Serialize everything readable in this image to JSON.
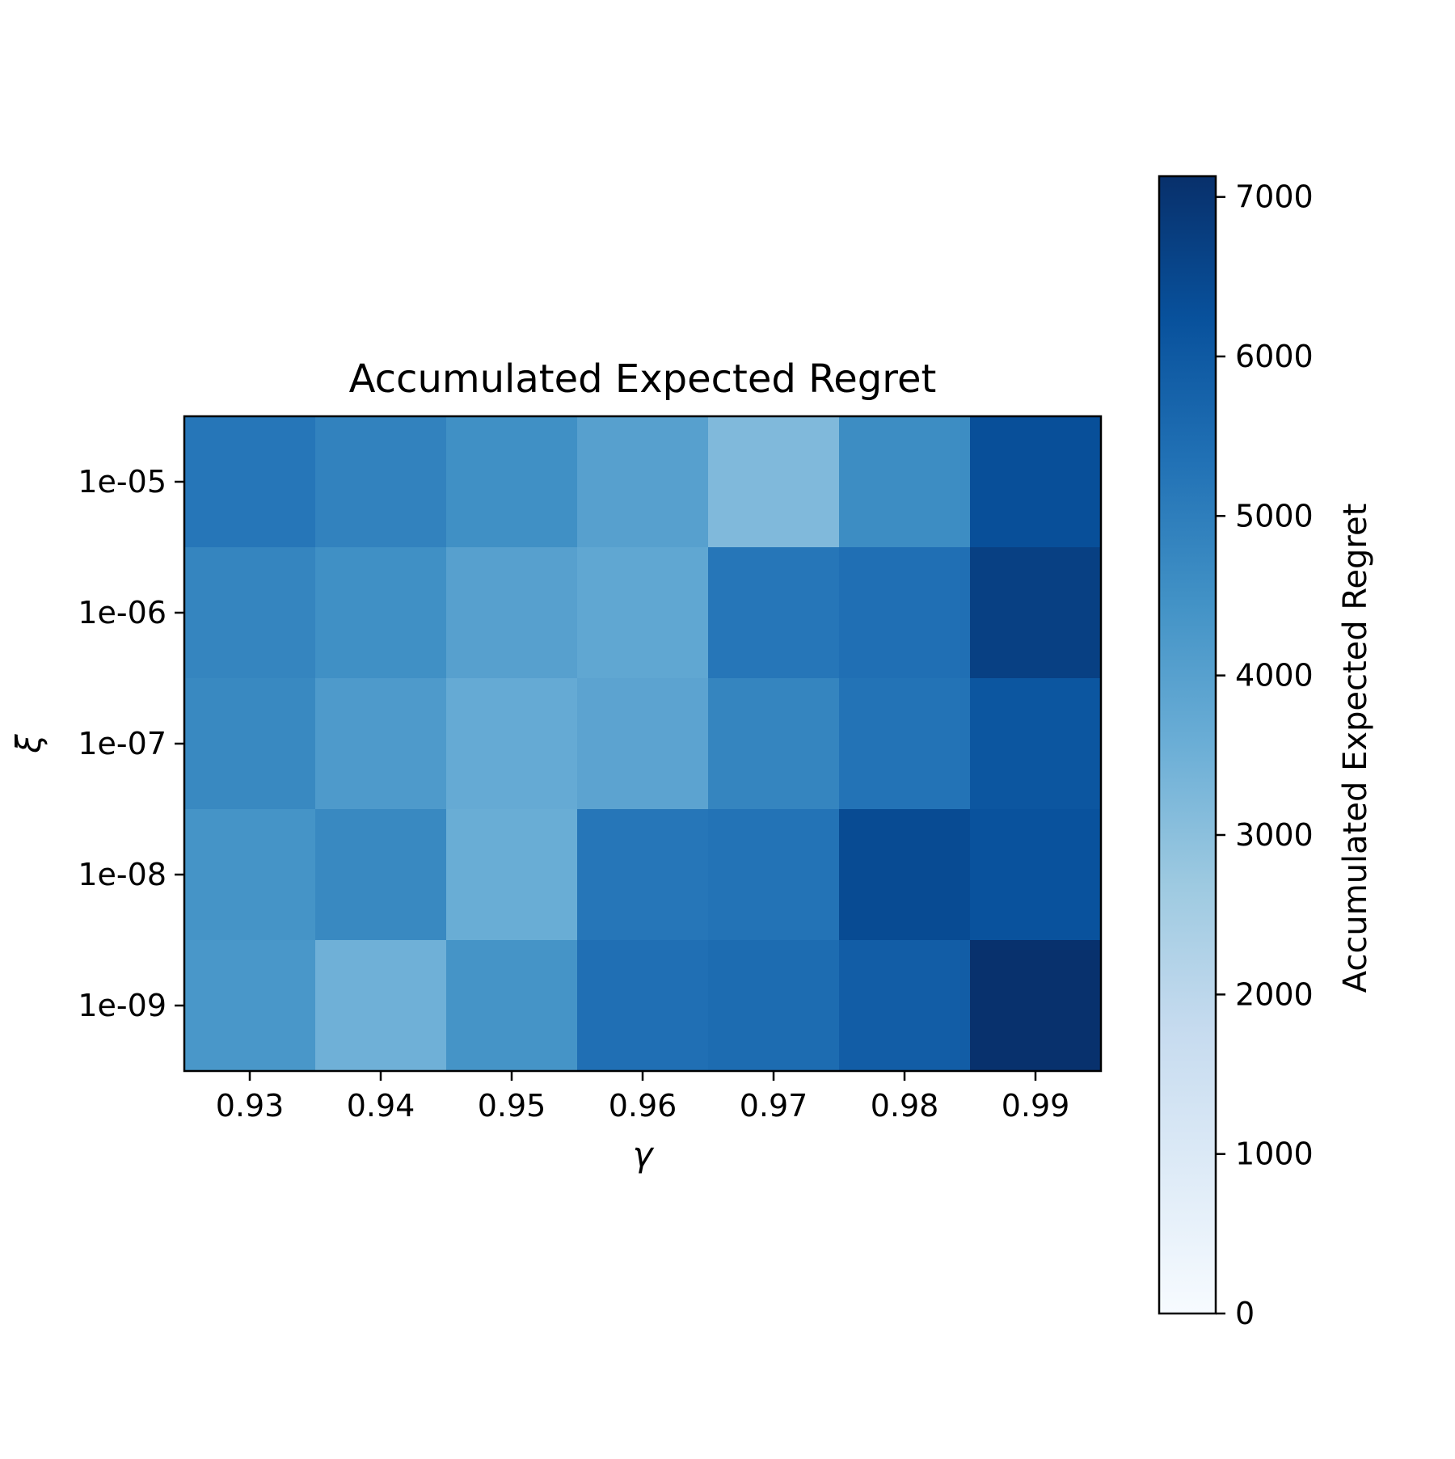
{
  "chart_data": {
    "type": "heatmap",
    "title": "Accumulated Expected Regret",
    "xlabel": "γ",
    "ylabel": "ξ",
    "x_categories": [
      "0.93",
      "0.94",
      "0.95",
      "0.96",
      "0.97",
      "0.98",
      "0.99"
    ],
    "y_categories": [
      "1e-05",
      "1e-06",
      "1e-07",
      "1e-08",
      "1e-09"
    ],
    "values": [
      [
        5200,
        4900,
        4500,
        4000,
        3200,
        4600,
        6300
      ],
      [
        4800,
        4500,
        4000,
        3800,
        5200,
        5400,
        6700
      ],
      [
        4700,
        4200,
        3700,
        3900,
        4800,
        5300,
        6100
      ],
      [
        4400,
        4700,
        3600,
        5200,
        5300,
        6400,
        6200
      ],
      [
        4300,
        3500,
        4400,
        5400,
        5500,
        5900,
        7100
      ]
    ],
    "colorbar": {
      "label": "Accumulated Expected Regret",
      "min": 0,
      "max": 7130,
      "ticks": [
        0,
        1000,
        2000,
        3000,
        4000,
        5000,
        6000,
        7000
      ],
      "tick_labels": [
        "0",
        "1000",
        "2000",
        "3000",
        "4000",
        "5000",
        "6000",
        "7000"
      ]
    },
    "colormap": "Blues",
    "grid": false
  }
}
